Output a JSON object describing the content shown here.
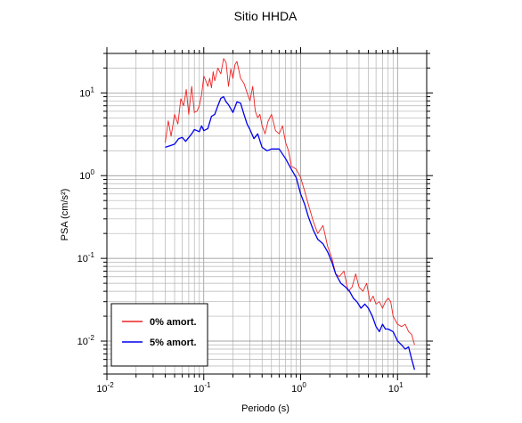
{
  "chart_data": {
    "type": "line",
    "title": "Sitio HHDA",
    "xlabel": "Periodo (s)",
    "ylabel": "PSA (cm/s²)",
    "xscale": "log",
    "yscale": "log",
    "xlim": [
      0.01,
      20
    ],
    "ylim": [
      0.004,
      30
    ],
    "x_ticks": [
      {
        "value": 0.01,
        "base": "10",
        "exp": "-2"
      },
      {
        "value": 0.1,
        "base": "10",
        "exp": "-1"
      },
      {
        "value": 1,
        "base": "10",
        "exp": "0"
      },
      {
        "value": 10,
        "base": "10",
        "exp": "1"
      }
    ],
    "y_ticks": [
      {
        "value": 0.01,
        "base": "10",
        "exp": "-2"
      },
      {
        "value": 0.1,
        "base": "10",
        "exp": "-1"
      },
      {
        "value": 1,
        "base": "10",
        "exp": "0"
      },
      {
        "value": 10,
        "base": "10",
        "exp": "1"
      }
    ],
    "grid": true,
    "legend_position": "bottom-left",
    "series": [
      {
        "name": "0% amort.",
        "color": "#ee2222",
        "x": [
          0.04,
          0.043,
          0.046,
          0.05,
          0.054,
          0.058,
          0.062,
          0.066,
          0.07,
          0.075,
          0.08,
          0.085,
          0.09,
          0.095,
          0.1,
          0.105,
          0.11,
          0.115,
          0.12,
          0.125,
          0.13,
          0.14,
          0.15,
          0.16,
          0.17,
          0.18,
          0.19,
          0.2,
          0.21,
          0.22,
          0.24,
          0.26,
          0.28,
          0.3,
          0.32,
          0.34,
          0.36,
          0.38,
          0.4,
          0.43,
          0.46,
          0.5,
          0.55,
          0.6,
          0.65,
          0.7,
          0.75,
          0.8,
          0.9,
          1.0,
          1.1,
          1.2,
          1.35,
          1.5,
          1.7,
          1.9,
          2.1,
          2.3,
          2.5,
          2.8,
          3.1,
          3.4,
          3.7,
          4.0,
          4.4,
          4.8,
          5.2,
          5.6,
          6.0,
          6.5,
          7.0,
          7.5,
          8.0,
          8.5,
          9.0,
          10,
          11,
          12,
          13,
          14,
          15
        ],
        "values": [
          2.5,
          4.6,
          3.0,
          5.5,
          4.2,
          8.5,
          7.0,
          11.0,
          5.5,
          12.0,
          5.8,
          6.0,
          7.0,
          9.5,
          16.0,
          14.0,
          12.0,
          15.0,
          11.5,
          18.0,
          14.0,
          20.0,
          17.0,
          26.0,
          23.5,
          12.0,
          19.5,
          15.0,
          22.0,
          24.0,
          15.0,
          13.0,
          10.0,
          8.0,
          12.0,
          6.0,
          5.0,
          5.5,
          4.0,
          3.2,
          4.5,
          5.5,
          3.5,
          3.2,
          4.0,
          2.5,
          2.0,
          1.3,
          1.2,
          0.95,
          0.65,
          0.45,
          0.28,
          0.2,
          0.25,
          0.14,
          0.1,
          0.065,
          0.06,
          0.07,
          0.04,
          0.045,
          0.065,
          0.045,
          0.04,
          0.05,
          0.03,
          0.035,
          0.028,
          0.03,
          0.025,
          0.03,
          0.033,
          0.03,
          0.02,
          0.016,
          0.015,
          0.016,
          0.013,
          0.012,
          0.009
        ]
      },
      {
        "name": "5% amort.",
        "color": "#0000ee",
        "x": [
          0.04,
          0.045,
          0.05,
          0.055,
          0.06,
          0.065,
          0.07,
          0.075,
          0.08,
          0.085,
          0.09,
          0.095,
          0.1,
          0.11,
          0.12,
          0.13,
          0.14,
          0.15,
          0.16,
          0.17,
          0.18,
          0.2,
          0.22,
          0.24,
          0.26,
          0.28,
          0.3,
          0.33,
          0.36,
          0.4,
          0.45,
          0.5,
          0.55,
          0.6,
          0.7,
          0.8,
          0.9,
          1.0,
          1.1,
          1.2,
          1.35,
          1.5,
          1.7,
          1.9,
          2.1,
          2.3,
          2.6,
          2.9,
          3.2,
          3.5,
          3.8,
          4.2,
          4.6,
          5.0,
          5.5,
          6.0,
          6.5,
          7.0,
          7.5,
          8.0,
          9.0,
          10,
          11,
          12,
          13,
          14,
          15
        ],
        "values": [
          2.2,
          2.3,
          2.4,
          2.8,
          2.9,
          2.6,
          2.9,
          3.2,
          3.6,
          3.5,
          3.4,
          4.0,
          3.5,
          3.7,
          5.2,
          5.5,
          7.0,
          8.6,
          9.0,
          7.8,
          7.2,
          5.8,
          7.8,
          7.5,
          5.5,
          4.2,
          3.6,
          2.8,
          3.2,
          2.2,
          2.0,
          2.1,
          2.1,
          2.1,
          1.6,
          1.2,
          0.95,
          0.6,
          0.45,
          0.32,
          0.22,
          0.17,
          0.15,
          0.12,
          0.09,
          0.065,
          0.05,
          0.045,
          0.04,
          0.033,
          0.03,
          0.025,
          0.028,
          0.025,
          0.02,
          0.015,
          0.013,
          0.016,
          0.014,
          0.014,
          0.013,
          0.01,
          0.009,
          0.008,
          0.0085,
          0.006,
          0.0045
        ]
      }
    ]
  }
}
